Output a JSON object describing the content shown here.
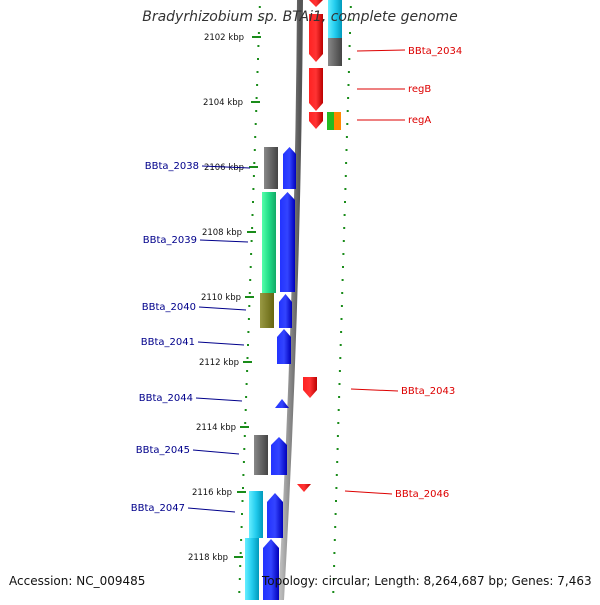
{
  "title": "Bradyrhizobium sp. BTAi1, complete genome",
  "accession": "Accession: NC_009485",
  "topology": "Topology: circular; Length: 8,264,687 bp; Genes: 7,463",
  "ticks": [
    {
      "label": "2102 kbp"
    },
    {
      "label": "2104 kbp"
    },
    {
      "label": "2106 kbp"
    },
    {
      "label": "2108 kbp"
    },
    {
      "label": "2110 kbp"
    },
    {
      "label": "2112 kbp"
    },
    {
      "label": "2114 kbp"
    },
    {
      "label": "2116 kbp"
    },
    {
      "label": "2118 kbp"
    }
  ],
  "genes_left": [
    {
      "label": "BBta_2038"
    },
    {
      "label": "BBta_2039"
    },
    {
      "label": "BBta_2040"
    },
    {
      "label": "BBta_2041"
    },
    {
      "label": "BBta_2044"
    },
    {
      "label": "BBta_2045"
    },
    {
      "label": "BBta_2047"
    }
  ],
  "genes_right": [
    {
      "label": "BBta_2034"
    },
    {
      "label": "regB"
    },
    {
      "label": "regA"
    },
    {
      "label": "BBta_2043"
    },
    {
      "label": "BBta_2046"
    }
  ],
  "colors": {
    "forward_gene": "#0000ee",
    "reverse_gene": "#ee0000",
    "left_label": "#00008b",
    "right_label": "#dd0000",
    "tick": "#1a8c1a",
    "backbone": "#888888",
    "cog_gray": "#666666",
    "cog_green": "#22dd88",
    "cog_olive": "#777722",
    "cog_cyan": "#22ccee",
    "cog_orange": "#ff8800",
    "cog_lime": "#22bb22"
  }
}
